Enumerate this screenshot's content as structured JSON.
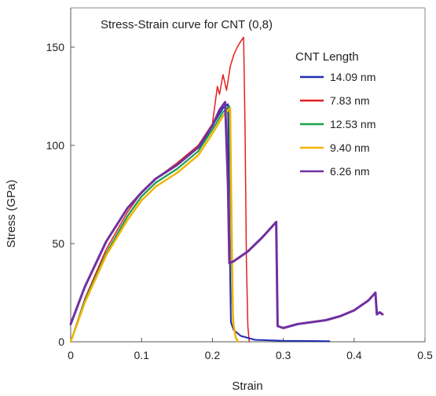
{
  "chart_data": {
    "type": "line",
    "title": "Stress-Strain curve for CNT (0,8)",
    "xlabel": "Strain",
    "ylabel": "Stress (GPa)",
    "xlim": [
      0,
      0.5
    ],
    "ylim": [
      0,
      170
    ],
    "xticks": [
      "0",
      "0.1",
      "0.2",
      "0.3",
      "0.4",
      "0.5"
    ],
    "yticks": [
      "0",
      "50",
      "100",
      "150"
    ],
    "xtick_values": [
      0,
      0.1,
      0.2,
      0.3,
      0.4,
      0.5
    ],
    "ytick_values": [
      0,
      50,
      100,
      150
    ],
    "grid": false,
    "legend_title": "CNT Length",
    "legend_position": "top-right",
    "series": [
      {
        "name": "14.09 nm",
        "color": "#1f2db0",
        "points": [
          [
            0,
            0
          ],
          [
            0.02,
            21
          ],
          [
            0.05,
            45
          ],
          [
            0.08,
            64
          ],
          [
            0.1,
            74
          ],
          [
            0.12,
            81
          ],
          [
            0.15,
            88
          ],
          [
            0.18,
            97
          ],
          [
            0.2,
            110
          ],
          [
            0.215,
            119
          ],
          [
            0.222,
            121
          ],
          [
            0.224,
            60
          ],
          [
            0.226,
            10
          ],
          [
            0.23,
            6
          ],
          [
            0.24,
            3
          ],
          [
            0.26,
            1
          ],
          [
            0.3,
            0.5
          ],
          [
            0.34,
            0.4
          ],
          [
            0.365,
            0.3
          ]
        ]
      },
      {
        "name": "7.83 nm",
        "color": "#e21f1f",
        "points": [
          [
            0,
            0
          ],
          [
            0.02,
            22
          ],
          [
            0.05,
            47
          ],
          [
            0.08,
            66
          ],
          [
            0.1,
            76
          ],
          [
            0.12,
            83
          ],
          [
            0.15,
            91
          ],
          [
            0.18,
            100
          ],
          [
            0.2,
            111
          ],
          [
            0.207,
            130
          ],
          [
            0.21,
            126
          ],
          [
            0.215,
            136
          ],
          [
            0.22,
            128
          ],
          [
            0.225,
            140
          ],
          [
            0.23,
            146
          ],
          [
            0.235,
            150
          ],
          [
            0.24,
            153
          ],
          [
            0.244,
            155
          ],
          [
            0.246,
            110
          ],
          [
            0.248,
            40
          ],
          [
            0.25,
            8
          ],
          [
            0.252,
            0
          ]
        ]
      },
      {
        "name": "12.53 nm",
        "color": "#16a34a",
        "points": [
          [
            0,
            0
          ],
          [
            0.02,
            21
          ],
          [
            0.05,
            45
          ],
          [
            0.08,
            64
          ],
          [
            0.1,
            74
          ],
          [
            0.12,
            81
          ],
          [
            0.15,
            88
          ],
          [
            0.18,
            97
          ],
          [
            0.2,
            108
          ],
          [
            0.215,
            117
          ],
          [
            0.224,
            120
          ],
          [
            0.226,
            70
          ],
          [
            0.228,
            20
          ],
          [
            0.23,
            8
          ],
          [
            0.233,
            2
          ],
          [
            0.236,
            0
          ]
        ]
      },
      {
        "name": "9.40 nm",
        "color": "#f0b400",
        "points": [
          [
            0,
            0
          ],
          [
            0.02,
            20
          ],
          [
            0.05,
            44
          ],
          [
            0.08,
            62
          ],
          [
            0.1,
            72
          ],
          [
            0.12,
            79
          ],
          [
            0.15,
            86
          ],
          [
            0.18,
            95
          ],
          [
            0.2,
            106
          ],
          [
            0.215,
            115
          ],
          [
            0.225,
            119
          ],
          [
            0.227,
            60
          ],
          [
            0.229,
            10
          ],
          [
            0.233,
            2
          ],
          [
            0.236,
            0
          ]
        ]
      },
      {
        "name": "6.26 nm",
        "color": "#7030a0",
        "points": [
          [
            0,
            9
          ],
          [
            0.02,
            28
          ],
          [
            0.05,
            51
          ],
          [
            0.08,
            68
          ],
          [
            0.1,
            76
          ],
          [
            0.12,
            83
          ],
          [
            0.15,
            90
          ],
          [
            0.18,
            99
          ],
          [
            0.2,
            110
          ],
          [
            0.21,
            118
          ],
          [
            0.218,
            122
          ],
          [
            0.222,
            80
          ],
          [
            0.224,
            40
          ],
          [
            0.23,
            41
          ],
          [
            0.25,
            46
          ],
          [
            0.27,
            53
          ],
          [
            0.28,
            57
          ],
          [
            0.29,
            61
          ],
          [
            0.292,
            8
          ],
          [
            0.3,
            7
          ],
          [
            0.32,
            9
          ],
          [
            0.34,
            10
          ],
          [
            0.36,
            11
          ],
          [
            0.38,
            13
          ],
          [
            0.4,
            16
          ],
          [
            0.42,
            21
          ],
          [
            0.43,
            25
          ],
          [
            0.432,
            14
          ],
          [
            0.436,
            15
          ],
          [
            0.44,
            14
          ]
        ]
      }
    ]
  }
}
